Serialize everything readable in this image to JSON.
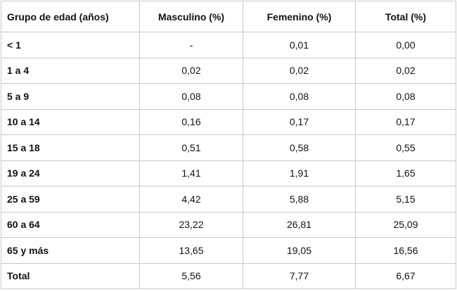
{
  "table": {
    "header": [
      "Grupo de edad (años)",
      "Masculino (%)",
      "Femenino (%)",
      "Total (%)"
    ],
    "rows": [
      [
        "< 1",
        "-",
        "0,01",
        "0,00"
      ],
      [
        "1 a 4",
        "0,02",
        "0,02",
        "0,02"
      ],
      [
        "5 a 9",
        "0,08",
        "0,08",
        "0,08"
      ],
      [
        "10 a 14",
        "0,16",
        "0,17",
        "0,17"
      ],
      [
        "15 a 18",
        "0,51",
        "0,58",
        "0,55"
      ],
      [
        "19 a 24",
        "1,41",
        "1,91",
        "1,65"
      ],
      [
        "25 a 59",
        "4,42",
        "5,88",
        "5,15"
      ],
      [
        "60 a 64",
        "23,22",
        "26,81",
        "25,09"
      ],
      [
        "65 y más",
        "13,65",
        "19,05",
        "16,56"
      ],
      [
        "Total",
        "5,56",
        "7,77",
        "6,67"
      ]
    ]
  }
}
